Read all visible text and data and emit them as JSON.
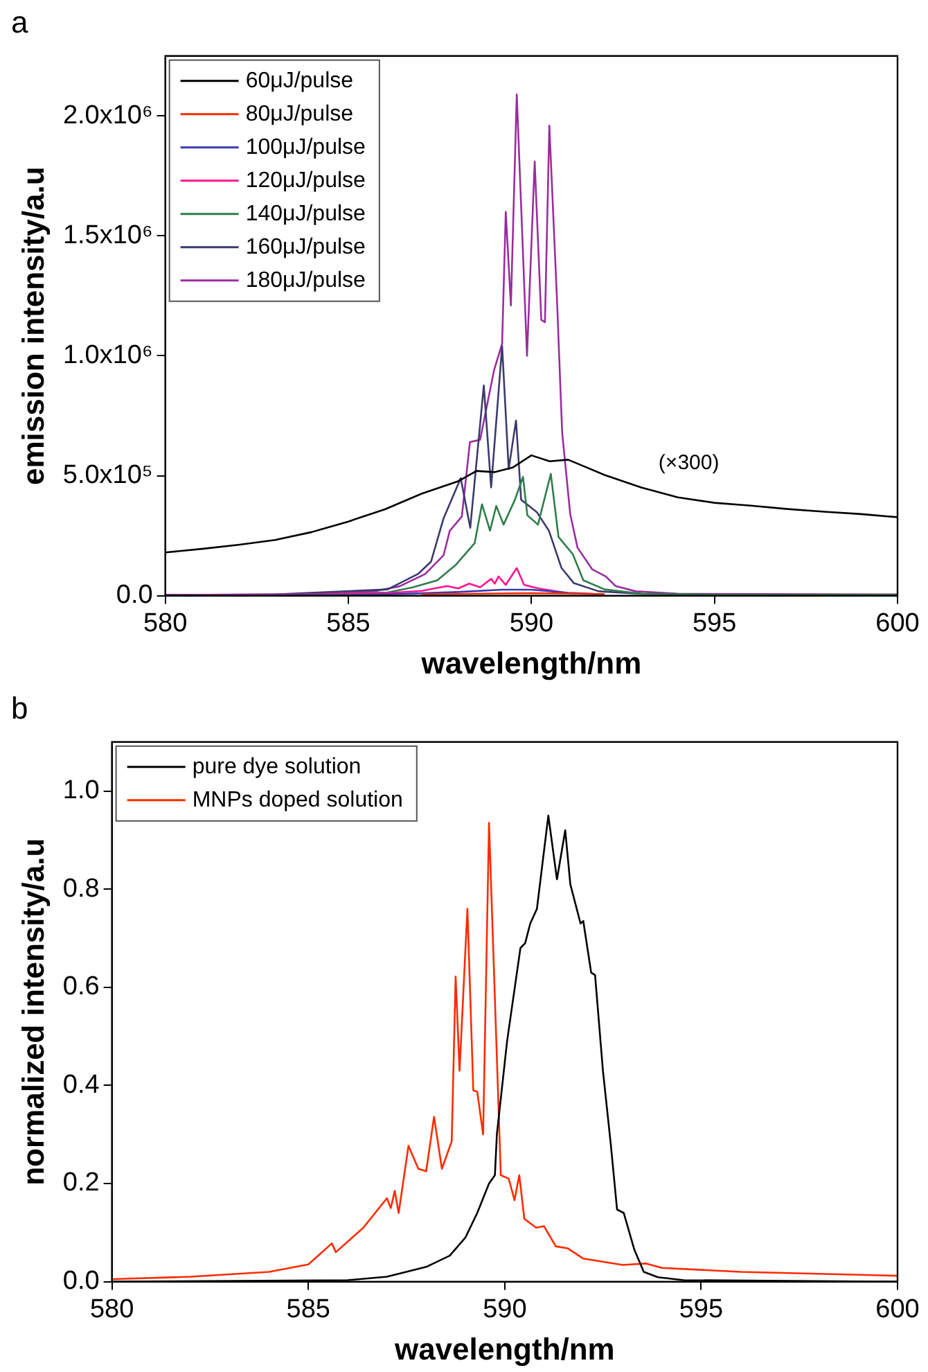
{
  "chart_data": [
    {
      "type": "line",
      "title": "a",
      "xlabel": "wavelength/nm",
      "ylabel": "emission intensity/a.u",
      "xlim": [
        580,
        600
      ],
      "xticks": [
        580,
        585,
        590,
        595,
        600
      ],
      "ylim": [
        0,
        2250000
      ],
      "yticks": [
        {
          "value": 0,
          "label": "0.0"
        },
        {
          "value": 500000,
          "label": "5.0x10⁵"
        },
        {
          "value": 1000000,
          "label": "1.0x10⁶"
        },
        {
          "value": 1500000,
          "label": "1.5x10⁶"
        },
        {
          "value": 2000000,
          "label": "2.0x10⁶"
        }
      ],
      "legend": "top left",
      "annotations": [
        "(×300)"
      ],
      "series": [
        {
          "name": "60μJ/pulse",
          "color": "#000000",
          "x": [
            580,
            581,
            582,
            583,
            584,
            585,
            586,
            587,
            588,
            588.5,
            589,
            589.5,
            590,
            590.5,
            591,
            591.5,
            592,
            593,
            594,
            595,
            596,
            597,
            598,
            599,
            600
          ],
          "values": [
            180000,
            195000,
            212000,
            232000,
            265000,
            309000,
            360000,
            425000,
            477000,
            520000,
            515000,
            535000,
            585000,
            560000,
            567000,
            535000,
            503000,
            451000,
            410000,
            387000,
            375000,
            361000,
            350000,
            340000,
            327000
          ]
        },
        {
          "name": "80μJ/pulse",
          "color": "#ff2a00",
          "x": [
            587,
            588,
            589,
            590,
            591,
            592
          ],
          "values": [
            5000,
            7000,
            9000,
            10000,
            9000,
            6000
          ]
        },
        {
          "name": "100μJ/pulse",
          "color": "#3a3ab0",
          "x": [
            580,
            585,
            586,
            587,
            588,
            589.2,
            590,
            591,
            592
          ],
          "values": [
            1000,
            3000,
            5000,
            10000,
            15000,
            25000,
            25000,
            12000,
            5000
          ]
        },
        {
          "name": "120μJ/pulse",
          "color": "#ff1493",
          "x": [
            580,
            584,
            586,
            587,
            587.7,
            588,
            588.3,
            588.6,
            588.9,
            589,
            589.1,
            589.3,
            589.6,
            589.8,
            590.2,
            591,
            592
          ],
          "values": [
            2000,
            5000,
            10000,
            20000,
            40000,
            30000,
            50000,
            35000,
            70000,
            50000,
            80000,
            45000,
            115000,
            45000,
            30000,
            10000,
            5000
          ]
        },
        {
          "name": "140μJ/pulse",
          "color": "#2e7d4a",
          "x": [
            580,
            584,
            586.07,
            586.75,
            587.43,
            587.94,
            588.45,
            588.65,
            588.87,
            589.04,
            589.24,
            589.55,
            589.77,
            589.89,
            590.18,
            590.53,
            590.74,
            591.13,
            591.42,
            592,
            593,
            595,
            600
          ],
          "values": [
            2000,
            5000,
            13000,
            34000,
            64000,
            129000,
            219000,
            381000,
            271000,
            374000,
            296000,
            400000,
            495000,
            335000,
            296000,
            508000,
            245000,
            173000,
            64000,
            26000,
            8000,
            4000,
            3000
          ]
        },
        {
          "name": "160μJ/pulse",
          "color": "#3a3a6e",
          "x": [
            580,
            583,
            586.07,
            586.9,
            587.26,
            587.6,
            588.07,
            588.33,
            588.7,
            588.9,
            589.2,
            589.38,
            589.58,
            589.72,
            590.15,
            590.48,
            590.82,
            591.16,
            591.84,
            593,
            595,
            600
          ],
          "values": [
            3000,
            5000,
            26000,
            90000,
            142000,
            322000,
            490000,
            283000,
            876000,
            451000,
            1040000,
            528000,
            730000,
            400000,
            348000,
            270000,
            116000,
            52000,
            18000,
            8000,
            4000,
            3000
          ]
        },
        {
          "name": "180μJ/pulse",
          "color": "#9a2ca0",
          "x": [
            580,
            584,
            585.7,
            586.4,
            587.1,
            587.6,
            587.77,
            588.1,
            588.32,
            588.6,
            588.98,
            589.2,
            589.3,
            589.44,
            589.6,
            589.88,
            590.09,
            590.27,
            590.37,
            590.49,
            590.7,
            590.84,
            591.06,
            591.26,
            591.66,
            592.03,
            592.3,
            592.85,
            594,
            600
          ],
          "values": [
            3000,
            6000,
            18000,
            39000,
            90000,
            168000,
            270000,
            330000,
            640000,
            650000,
            940000,
            1050000,
            1600000,
            1210000,
            2090000,
            1000000,
            1810000,
            1150000,
            1140000,
            1960000,
            1230000,
            680000,
            340000,
            200000,
            110000,
            80000,
            40000,
            18000,
            8000,
            5000
          ]
        }
      ]
    },
    {
      "type": "line",
      "title": "b",
      "xlabel": "wavelength/nm",
      "ylabel": "normalized intensity/a.u",
      "xlim": [
        580,
        600
      ],
      "xticks": [
        580,
        585,
        590,
        595,
        600
      ],
      "ylim": [
        0,
        1.1
      ],
      "yticks": [
        {
          "value": 0,
          "label": "0.0"
        },
        {
          "value": 0.2,
          "label": "0.2"
        },
        {
          "value": 0.4,
          "label": "0.4"
        },
        {
          "value": 0.6,
          "label": "0.6"
        },
        {
          "value": 0.8,
          "label": "0.8"
        },
        {
          "value": 1,
          "label": "1.0"
        }
      ],
      "legend": "top left",
      "series": [
        {
          "name": "pure dye solution",
          "color": "#000000",
          "x": [
            580,
            586,
            587,
            588,
            588.6,
            589,
            589.3,
            589.6,
            589.75,
            589.8,
            590.06,
            590.4,
            590.52,
            590.65,
            590.82,
            591.11,
            591.33,
            591.54,
            591.67,
            591.93,
            592,
            592.2,
            592.3,
            592.5,
            592.7,
            592.86,
            593.03,
            593.3,
            593.54,
            593.9,
            594.56,
            600
          ],
          "values": [
            0,
            0.003,
            0.01,
            0.03,
            0.053,
            0.09,
            0.14,
            0.2,
            0.217,
            0.3,
            0.49,
            0.68,
            0.69,
            0.73,
            0.76,
            0.95,
            0.82,
            0.92,
            0.81,
            0.73,
            0.735,
            0.63,
            0.625,
            0.43,
            0.28,
            0.147,
            0.14,
            0.065,
            0.02,
            0.009,
            0.003,
            0
          ]
        },
        {
          "name": "MNPs doped solution",
          "color": "#ff2a00",
          "x": [
            580,
            582,
            583,
            584,
            585,
            585.6,
            585.7,
            586.4,
            587,
            587.1,
            587.2,
            587.3,
            587.55,
            587.8,
            588,
            588.2,
            588.4,
            588.65,
            588.75,
            588.85,
            589.05,
            589.2,
            589.3,
            589.45,
            589.6,
            589.9,
            590.1,
            590.25,
            590.37,
            590.5,
            590.8,
            591,
            591.3,
            591.6,
            592,
            593,
            593.6,
            594,
            596,
            600
          ],
          "values": [
            0.005,
            0.01,
            0.015,
            0.02,
            0.035,
            0.078,
            0.06,
            0.11,
            0.17,
            0.15,
            0.185,
            0.14,
            0.277,
            0.23,
            0.225,
            0.336,
            0.23,
            0.286,
            0.622,
            0.43,
            0.76,
            0.39,
            0.387,
            0.3,
            0.935,
            0.217,
            0.21,
            0.166,
            0.217,
            0.128,
            0.11,
            0.113,
            0.072,
            0.068,
            0.047,
            0.034,
            0.037,
            0.028,
            0.02,
            0.012
          ]
        }
      ]
    }
  ]
}
